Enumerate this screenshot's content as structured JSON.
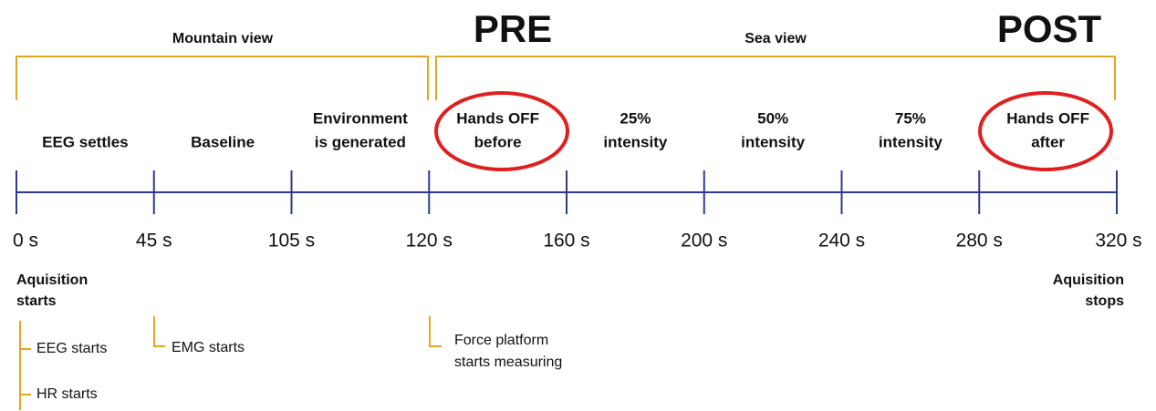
{
  "brackets": [
    {
      "label": "Mountain view"
    },
    {
      "label": "Sea view"
    }
  ],
  "phase_markers": [
    "PRE",
    "POST"
  ],
  "segments": [
    {
      "lines": [
        "EEG settles"
      ]
    },
    {
      "lines": [
        "Baseline"
      ]
    },
    {
      "lines": [
        "Environment",
        "is generated"
      ]
    },
    {
      "lines": [
        "Hands OFF",
        "before"
      ]
    },
    {
      "lines": [
        "25%",
        "intensity"
      ]
    },
    {
      "lines": [
        "50%",
        "intensity"
      ]
    },
    {
      "lines": [
        "75%",
        "intensity"
      ]
    },
    {
      "lines": [
        "Hands OFF",
        "after"
      ]
    }
  ],
  "ticks": [
    "0 s",
    "45 s",
    "105 s",
    "120 s",
    "160 s",
    "200 s",
    "240 s",
    "280 s",
    "320 s"
  ],
  "acquisition": {
    "start": [
      "Aquisition",
      "starts"
    ],
    "stop": [
      "Aquisition",
      "stops"
    ]
  },
  "sub_events": [
    {
      "lines": [
        "EEG starts"
      ]
    },
    {
      "lines": [
        "HR starts"
      ]
    },
    {
      "lines": [
        "EMG starts"
      ]
    },
    {
      "lines": [
        "Force platform",
        "starts measuring"
      ]
    }
  ]
}
